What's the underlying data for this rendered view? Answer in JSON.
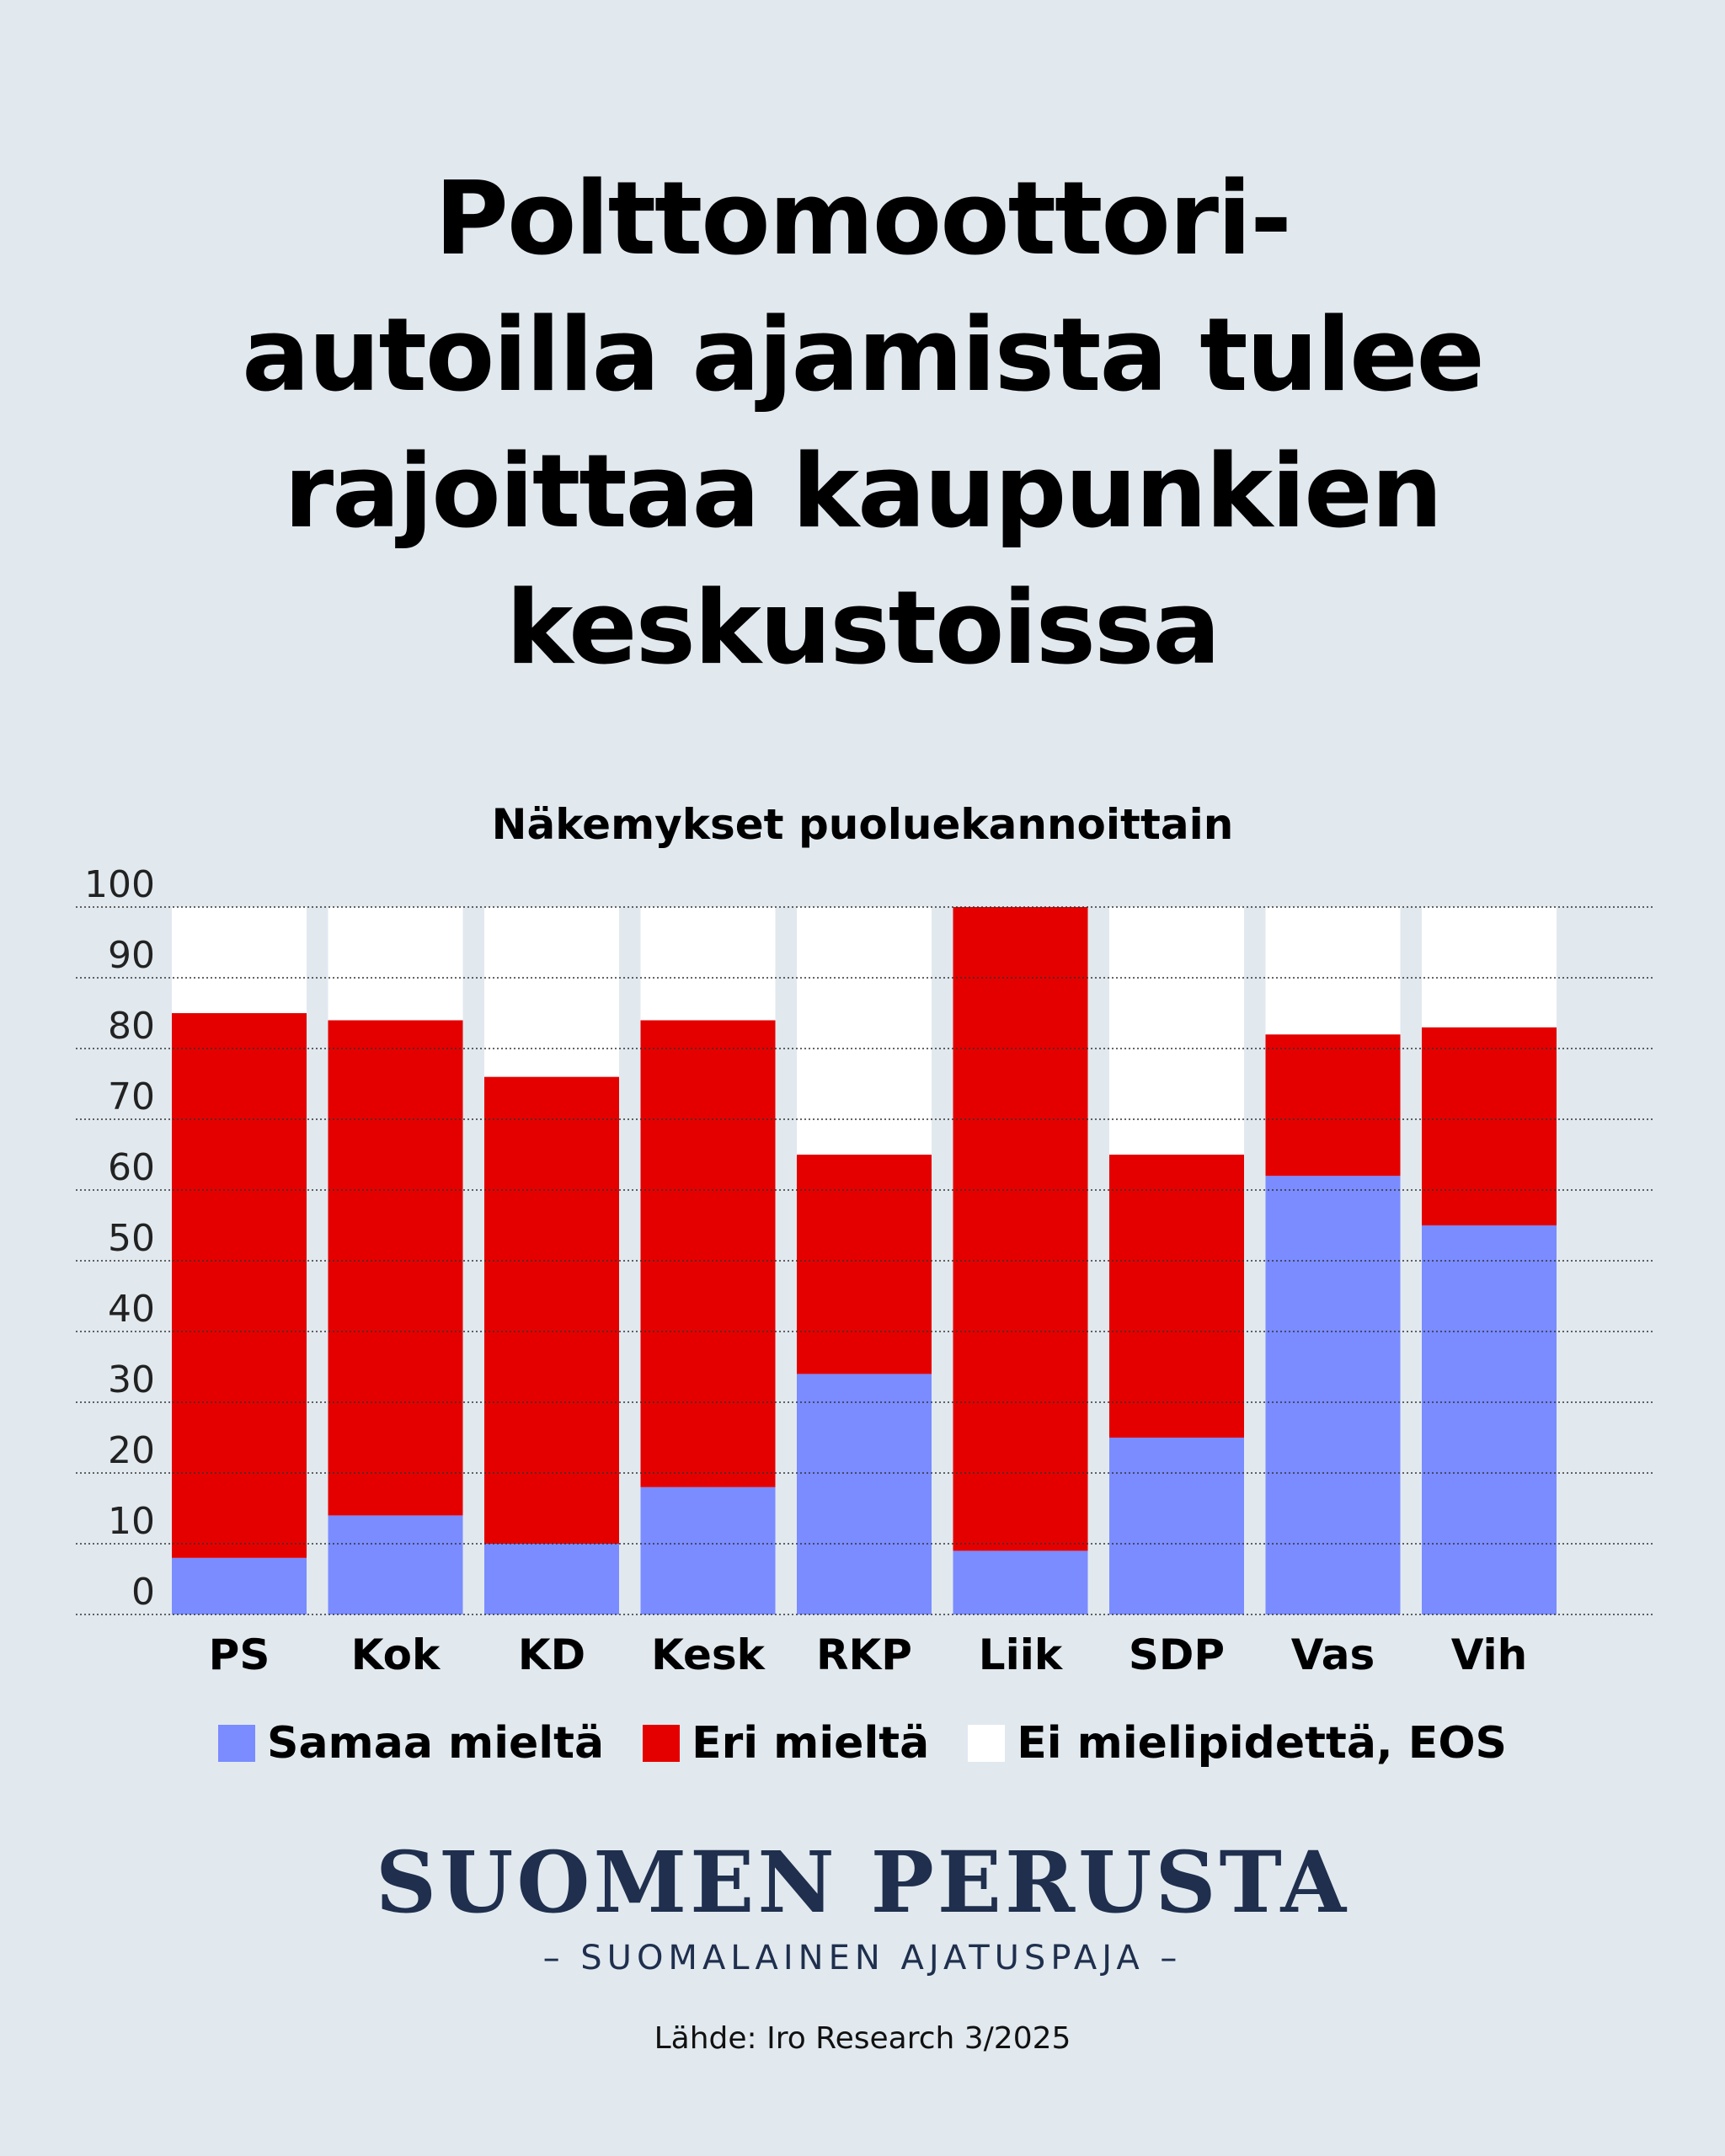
{
  "title_lines": [
    "Polttomoottori-",
    "autoilla ajamista tulee",
    "rajoittaa kaupunkien",
    "keskustoissa"
  ],
  "colors": {
    "background": "#e1e9ef",
    "samaa": "#7a8cff",
    "eri": "#e50000",
    "eos": "#ffffff"
  },
  "chart_data": {
    "type": "bar",
    "stacked": true,
    "title": "Näkemykset puoluekannoittain",
    "categories": [
      "PS",
      "Kok",
      "KD",
      "Kesk",
      "RKP",
      "Liik",
      "SDP",
      "Vas",
      "Vih"
    ],
    "series": [
      {
        "name": "Samaa mieltä",
        "color": "#7a8cff",
        "values": [
          8,
          14,
          10,
          18,
          34,
          9,
          25,
          62,
          55
        ]
      },
      {
        "name": "Eri mieltä",
        "color": "#e50000",
        "values": [
          77,
          70,
          66,
          66,
          31,
          91,
          40,
          20,
          28
        ]
      },
      {
        "name": "Ei mielipidettä, EOS",
        "color": "#ffffff",
        "values": [
          15,
          16,
          24,
          16,
          35,
          0,
          35,
          18,
          17
        ]
      }
    ],
    "ylim": [
      0,
      100
    ],
    "yticks": [
      "0",
      "10",
      "20",
      "30",
      "40",
      "50",
      "60",
      "70",
      "80",
      "90",
      "100"
    ],
    "grid": true,
    "legend_position": "bottom"
  },
  "logo": {
    "main": "SUOMEN PERUSTA",
    "sub": "– SUOMALAINEN AJATUSPAJA –"
  },
  "source": "Lähde: Iro Research 3/2025"
}
